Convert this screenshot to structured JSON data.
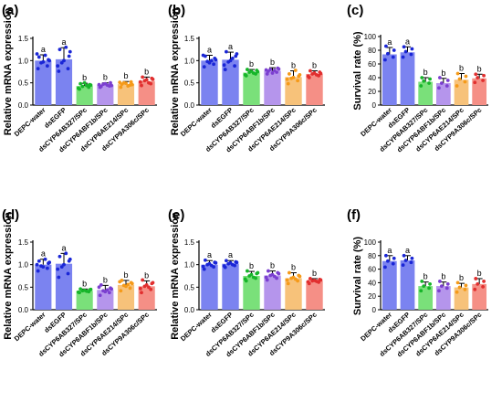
{
  "colors": {
    "bars": [
      "#7b83f0",
      "#7b83f0",
      "#7ae07a",
      "#b595ec",
      "#f7c27a",
      "#f58f86"
    ],
    "dots": [
      "#1a26d6",
      "#1a26d6",
      "#17b52a",
      "#7b3fd0",
      "#f59a19",
      "#e12f2f"
    ],
    "axis": "#000000"
  },
  "chart_data": [
    {
      "panel": "(a)",
      "type": "bar",
      "ylabel": "Relative mRNA expression",
      "ylim": [
        0,
        1.5
      ],
      "yticks": [
        "0.0",
        "0.5",
        "1.0",
        "1.5"
      ],
      "categories": [
        "DEPC-water",
        "dsEGFP",
        "dsCYP6AB327/SPc",
        "dsCYP6ABF1b/SPc",
        "dsCYP6AE214/SPc",
        "dsCYP9A306c/SPc"
      ],
      "values": [
        1.0,
        1.03,
        0.43,
        0.45,
        0.47,
        0.54
      ],
      "errors": [
        0.13,
        0.26,
        0.06,
        0.05,
        0.06,
        0.09
      ],
      "letters": [
        "a",
        "a",
        "b",
        "b",
        "b",
        "b"
      ],
      "points": [
        [
          0.82,
          0.88,
          0.95,
          1.02,
          1.08,
          1.12,
          0.97,
          1.15,
          1.0
        ],
        [
          0.76,
          0.82,
          0.95,
          1.1,
          1.25,
          1.3,
          1.0,
          0.88,
          1.2
        ],
        [
          0.36,
          0.4,
          0.42,
          0.46,
          0.48,
          0.44,
          0.5,
          0.38,
          0.45
        ],
        [
          0.4,
          0.43,
          0.47,
          0.5,
          0.42,
          0.45,
          0.48,
          0.46,
          0.44
        ],
        [
          0.4,
          0.45,
          0.5,
          0.52,
          0.47,
          0.43,
          0.49,
          0.51,
          0.46
        ],
        [
          0.44,
          0.48,
          0.55,
          0.6,
          0.63,
          0.5,
          0.57,
          0.52,
          0.58
        ]
      ]
    },
    {
      "panel": "(b)",
      "type": "bar",
      "ylabel": "Relative mRNA expression",
      "ylim": [
        0,
        1.5
      ],
      "yticks": [
        "0.0",
        "0.5",
        "1.0",
        "1.5"
      ],
      "categories": [
        "DEPC-water",
        "dsEGFP",
        "dsCYP6AB327/SPc",
        "dsCYP6ABF1b/SPc",
        "dsCYP6AE214/SPc",
        "dsCYP9A306c/SPc"
      ],
      "values": [
        1.0,
        1.02,
        0.73,
        0.77,
        0.63,
        0.7
      ],
      "errors": [
        0.12,
        0.17,
        0.07,
        0.07,
        0.14,
        0.07
      ],
      "letters": [
        "a",
        "a",
        "b",
        "b",
        "b",
        "b"
      ],
      "points": [
        [
          0.86,
          0.92,
          0.98,
          1.05,
          1.1,
          1.0,
          0.95,
          1.12,
          1.02
        ],
        [
          0.8,
          0.88,
          0.97,
          1.1,
          1.2,
          1.05,
          1.0,
          0.9,
          1.15
        ],
        [
          0.66,
          0.7,
          0.74,
          0.78,
          0.8,
          0.72,
          0.76,
          0.68,
          0.75
        ],
        [
          0.7,
          0.74,
          0.8,
          0.83,
          0.76,
          0.78,
          0.72,
          0.79,
          0.81
        ],
        [
          0.48,
          0.55,
          0.6,
          0.65,
          0.7,
          0.78,
          0.62,
          0.58,
          0.68
        ],
        [
          0.62,
          0.66,
          0.7,
          0.74,
          0.77,
          0.68,
          0.72,
          0.65,
          0.71
        ]
      ]
    },
    {
      "panel": "(c)",
      "type": "bar",
      "ylabel": "Survival rate (%)",
      "ylim": [
        0,
        100
      ],
      "yticks": [
        "0",
        "20",
        "40",
        "60",
        "80",
        "100"
      ],
      "categories": [
        "DEPC-water",
        "dsEGFP",
        "dsCYP6AB327/SPc",
        "dsCYP6ABF1b/SPc",
        "dsCYP6AE214/SPc",
        "dsCYP9A306c/SPc"
      ],
      "values": [
        74,
        77,
        34,
        32,
        37,
        39
      ],
      "errors": [
        10,
        8,
        6,
        7,
        9,
        6
      ],
      "letters": [
        "a",
        "a",
        "b",
        "b",
        "b",
        "b"
      ],
      "points": [
        [
          66,
          70,
          75,
          80,
          86
        ],
        [
          70,
          74,
          78,
          82,
          85
        ],
        [
          28,
          32,
          35,
          38,
          40
        ],
        [
          25,
          28,
          32,
          36,
          40
        ],
        [
          28,
          34,
          38,
          42,
          46
        ],
        [
          33,
          36,
          40,
          43,
          45
        ]
      ]
    },
    {
      "panel": "(d)",
      "type": "bar",
      "ylabel": "Relative mRNA expression",
      "ylim": [
        0,
        1.5
      ],
      "yticks": [
        "0.0",
        "0.5",
        "1.0",
        "1.5"
      ],
      "categories": [
        "DEPC-water",
        "dsEGFP",
        "dsCYP6AB327/SPc",
        "dsCYP6ABF1b/SPc",
        "dsCYP6AE214/SPc",
        "dsCYP9A306c/SPc"
      ],
      "values": [
        1.0,
        1.02,
        0.42,
        0.44,
        0.55,
        0.52
      ],
      "errors": [
        0.12,
        0.23,
        0.04,
        0.1,
        0.1,
        0.12
      ],
      "letters": [
        "a",
        "a",
        "b",
        "b",
        "b",
        "b"
      ],
      "points": [
        [
          0.86,
          0.92,
          0.97,
          1.03,
          1.08,
          1.12,
          0.95,
          1.0,
          1.05
        ],
        [
          0.72,
          0.8,
          0.95,
          1.08,
          1.18,
          1.25,
          1.0,
          0.9,
          1.12
        ],
        [
          0.38,
          0.4,
          0.42,
          0.44,
          0.46,
          0.41,
          0.43,
          0.39,
          0.45
        ],
        [
          0.32,
          0.38,
          0.42,
          0.48,
          0.55,
          0.44,
          0.4,
          0.5,
          0.46
        ],
        [
          0.42,
          0.48,
          0.54,
          0.6,
          0.65,
          0.56,
          0.52,
          0.62,
          0.58
        ],
        [
          0.38,
          0.45,
          0.52,
          0.58,
          0.66,
          0.5,
          0.55,
          0.47,
          0.6
        ]
      ]
    },
    {
      "panel": "(e)",
      "type": "bar",
      "ylabel": "Relative mRNA expression",
      "ylim": [
        0,
        1.5
      ],
      "yticks": [
        "0.0",
        "0.5",
        "1.0",
        "1.5"
      ],
      "categories": [
        "DEPC-water",
        "dsEGFP",
        "dsCYP6AB327/SPc",
        "dsCYP6ABF1b/SPc",
        "dsCYP6AE214/SPc",
        "dsCYP9A306c/SPc"
      ],
      "values": [
        1.0,
        1.02,
        0.75,
        0.76,
        0.7,
        0.64
      ],
      "errors": [
        0.09,
        0.07,
        0.1,
        0.1,
        0.12,
        0.05
      ],
      "letters": [
        "a",
        "a",
        "b",
        "b",
        "b",
        "b"
      ],
      "points": [
        [
          0.9,
          0.95,
          1.0,
          1.05,
          1.1,
          0.98,
          1.02,
          0.96,
          1.04
        ],
        [
          0.94,
          0.98,
          1.02,
          1.06,
          1.09,
          1.0,
          1.04,
          0.97,
          1.05
        ],
        [
          0.64,
          0.7,
          0.75,
          0.8,
          0.86,
          0.72,
          0.78,
          0.68,
          0.82
        ],
        [
          0.66,
          0.7,
          0.76,
          0.82,
          0.86,
          0.74,
          0.78,
          0.72,
          0.8
        ],
        [
          0.58,
          0.64,
          0.7,
          0.76,
          0.82,
          0.68,
          0.72,
          0.66,
          0.74
        ],
        [
          0.58,
          0.61,
          0.64,
          0.67,
          0.69,
          0.63,
          0.65,
          0.62,
          0.66
        ]
      ]
    },
    {
      "panel": "(f)",
      "type": "bar",
      "ylabel": "Survival rate (%)",
      "ylim": [
        0,
        100
      ],
      "yticks": [
        "0",
        "20",
        "40",
        "60",
        "80",
        "100"
      ],
      "categories": [
        "DEPC-water",
        "dsEGFP",
        "dsCYP6AB327/SPc",
        "dsCYP6ABF1b/SPc",
        "dsCYP6AE214/SPc",
        "dsCYP9A306c/SPc"
      ],
      "values": [
        72,
        73,
        35,
        35,
        33,
        38
      ],
      "errors": [
        8,
        7,
        6,
        6,
        6,
        8
      ],
      "letters": [
        "a",
        "a",
        "b",
        "b",
        "b",
        "b"
      ],
      "points": [
        [
          63,
          68,
          72,
          76,
          80
        ],
        [
          66,
          70,
          73,
          76,
          80
        ],
        [
          28,
          32,
          35,
          38,
          42
        ],
        [
          28,
          32,
          35,
          38,
          42
        ],
        [
          26,
          30,
          33,
          36,
          40
        ],
        [
          30,
          34,
          38,
          42,
          46
        ]
      ]
    }
  ]
}
